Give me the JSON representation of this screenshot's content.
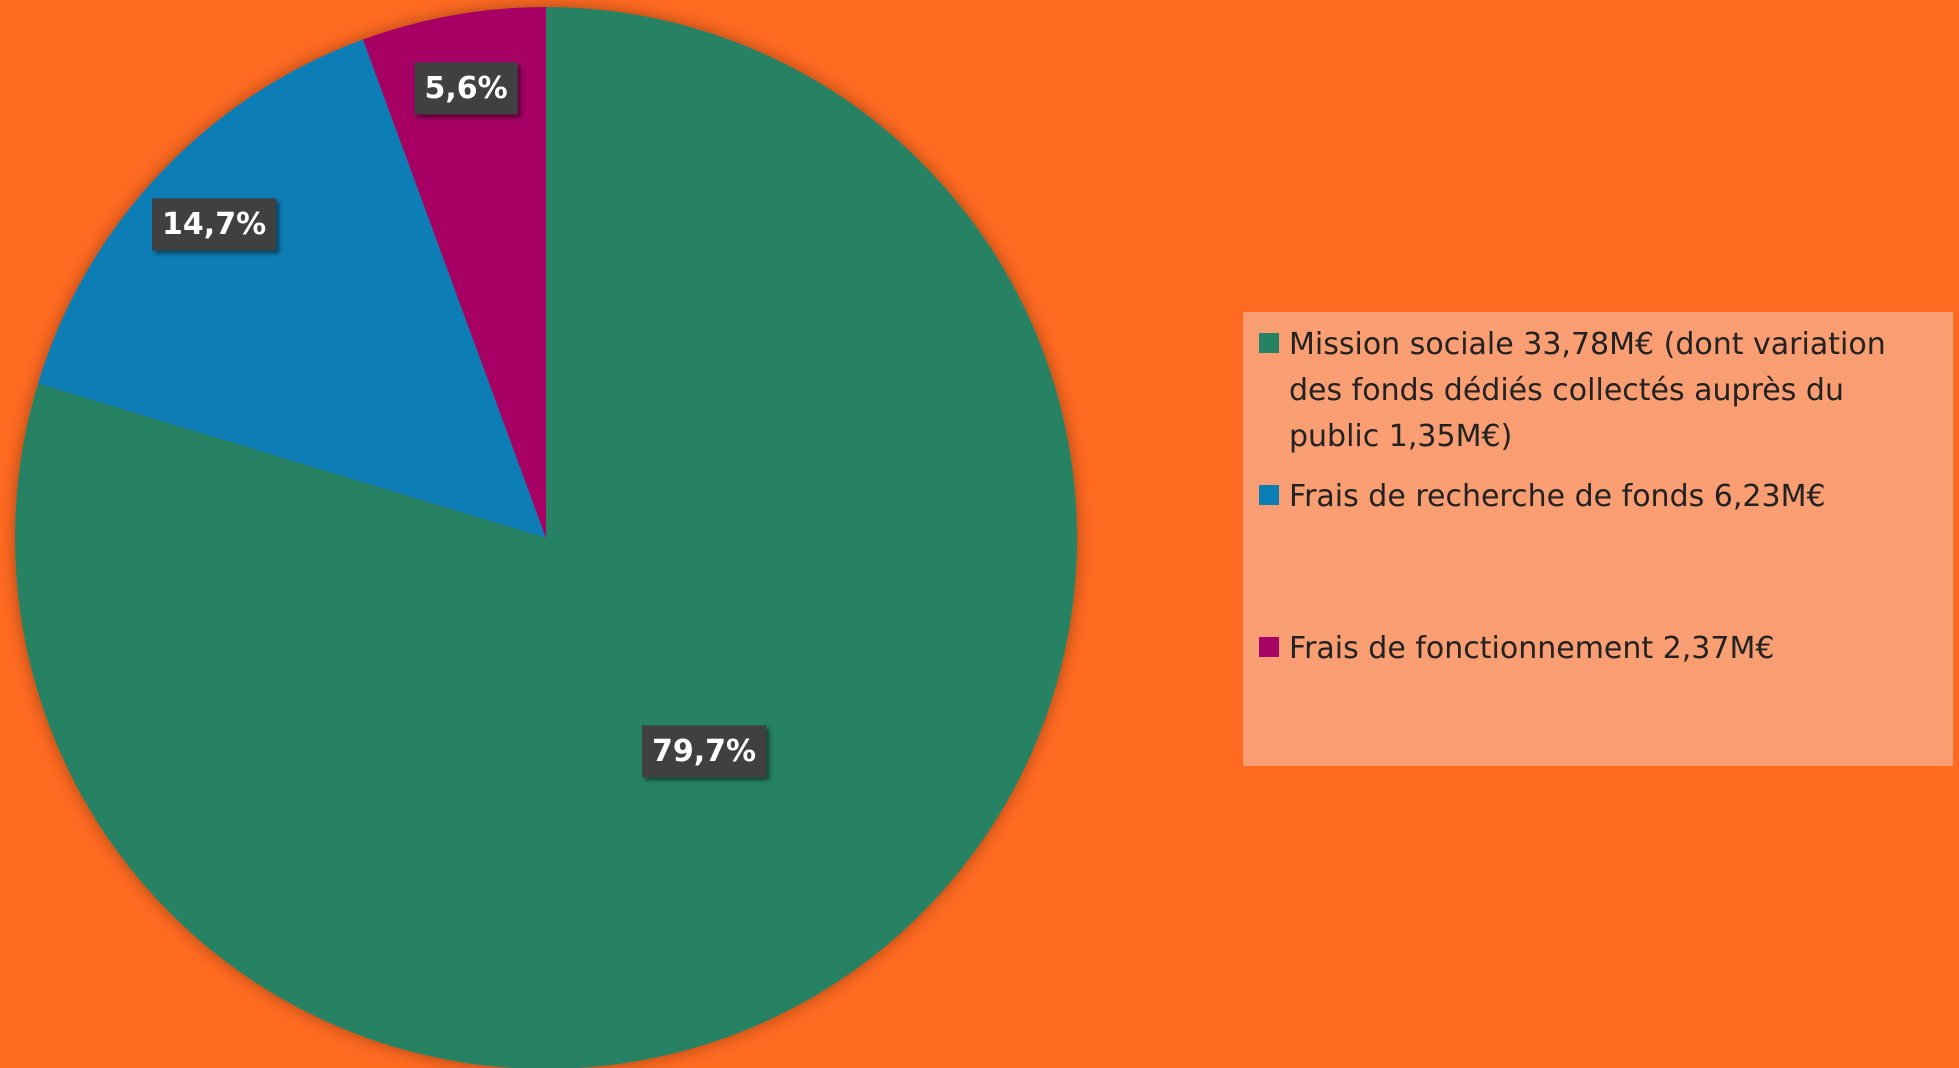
{
  "chart_data": {
    "type": "pie",
    "categories": [
      "Mission sociale 33,78M€ (dont variation des fonds dédiés collectés auprès du public 1,35M€)",
      "Frais de recherche de fonds 6,23M€",
      "Frais de fonctionnement 2,37M€"
    ],
    "values": [
      79.7,
      14.7,
      5.6
    ],
    "value_labels": [
      "79,7%",
      "14,7%",
      "5,6%"
    ],
    "colors": [
      "#268264",
      "#0b7db5",
      "#a60565"
    ],
    "legend": "right"
  }
}
